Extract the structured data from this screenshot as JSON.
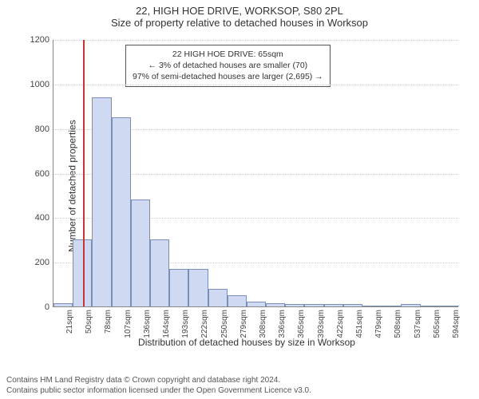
{
  "title_main": "22, HIGH HOE DRIVE, WORKSOP, S80 2PL",
  "title_sub": "Size of property relative to detached houses in Worksop",
  "title_fontsize": 13,
  "chart": {
    "type": "histogram",
    "ylabel": "Number of detached properties",
    "xlabel": "Distribution of detached houses by size in Worksop",
    "label_fontsize": 12,
    "ylim": [
      0,
      1200
    ],
    "ytick_step": 200,
    "yticks": [
      0,
      200,
      400,
      600,
      800,
      1000,
      1200
    ],
    "xtick_labels": [
      "21sqm",
      "50sqm",
      "78sqm",
      "107sqm",
      "136sqm",
      "164sqm",
      "193sqm",
      "222sqm",
      "250sqm",
      "279sqm",
      "308sqm",
      "336sqm",
      "365sqm",
      "393sqm",
      "422sqm",
      "451sqm",
      "479sqm",
      "508sqm",
      "537sqm",
      "565sqm",
      "594sqm"
    ],
    "values": [
      15,
      300,
      940,
      850,
      480,
      300,
      170,
      170,
      80,
      50,
      20,
      15,
      10,
      10,
      10,
      10,
      0,
      0,
      10,
      0,
      0
    ],
    "bar_fill": "#cfdaf2",
    "bar_stroke": "#7a8fb8",
    "bar_width_ratio": 1.0,
    "grid_color": "#cccccc",
    "axis_color": "#888888",
    "background_color": "#ffffff",
    "tick_fontsize": 11
  },
  "marker": {
    "position_sqm": 65,
    "x_min_sqm": 21,
    "x_step_sqm": 28.6,
    "line_color": "#cc3333"
  },
  "info_box": {
    "line1": "22 HIGH HOE DRIVE: 65sqm",
    "line2": "← 3% of detached houses are smaller (70)",
    "line3": "97% of semi-detached houses are larger (2,695) →",
    "border_color": "#555555",
    "fontsize": 10.5
  },
  "footer": {
    "line1": "Contains HM Land Registry data © Crown copyright and database right 2024.",
    "line2": "Contains public sector information licensed under the Open Government Licence v3.0.",
    "fontsize": 10,
    "color": "#555555"
  }
}
